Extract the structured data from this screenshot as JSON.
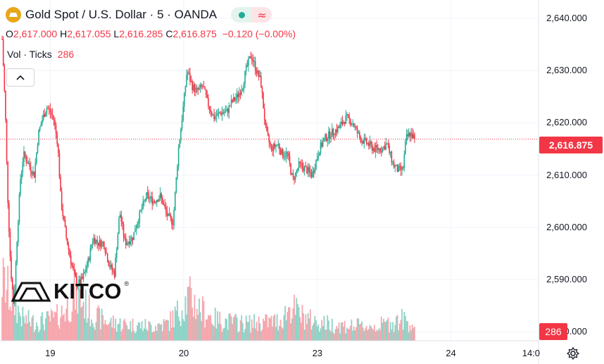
{
  "header": {
    "title": "Gold Spot / U.S. Dollar · 5 · OANDA",
    "compare_symbol": "≈"
  },
  "ohlc": {
    "o_label": "O",
    "o_value": "2,617.000",
    "h_label": "H",
    "h_value": "2,617.055",
    "l_label": "L",
    "l_value": "2,616.285",
    "c_label": "C",
    "c_value": "2,616.875",
    "change": "−0.120 (−0.00%)"
  },
  "volume_indicator": {
    "label": "Vol · Ticks",
    "value": "286"
  },
  "logo": {
    "text": "KITCO",
    "reg": "®"
  },
  "colors": {
    "up": "#22ab94",
    "down": "#f23645",
    "vol_up": "#8fd3c7",
    "vol_down": "#f6a7ad"
  },
  "chart_data": {
    "type": "candlestick",
    "symbol": "Gold Spot / U.S. Dollar",
    "interval": "5",
    "source": "OANDA",
    "y_ticks": [
      "2,640.000",
      "2,630.000",
      "2,620.000",
      "2,610.000",
      "2,600.000",
      "2,590.000",
      "2,580.000"
    ],
    "y_tick_values": [
      2640,
      2630,
      2620,
      2610,
      2600,
      2590,
      2580
    ],
    "ylim": [
      2578.3,
      2643.5
    ],
    "x_ticks": [
      "19",
      "20",
      "23",
      "24",
      "14:0"
    ],
    "x_tick_positions": [
      0.75,
      2.0,
      3.25,
      4.5,
      5.25
    ],
    "x_range": [
      0.28,
      5.32
    ],
    "last_price": "2,616.875",
    "last_price_value": 2616.875,
    "last_volume": "286",
    "price_path": [
      [
        0.3,
        2636
      ],
      [
        0.33,
        2622
      ],
      [
        0.35,
        2607
      ],
      [
        0.38,
        2592
      ],
      [
        0.41,
        2585
      ],
      [
        0.44,
        2598
      ],
      [
        0.47,
        2609
      ],
      [
        0.5,
        2614
      ],
      [
        0.55,
        2612
      ],
      [
        0.6,
        2610
      ],
      [
        0.64,
        2618
      ],
      [
        0.68,
        2621
      ],
      [
        0.72,
        2623
      ],
      [
        0.78,
        2621
      ],
      [
        0.82,
        2616
      ],
      [
        0.85,
        2605
      ],
      [
        0.9,
        2598
      ],
      [
        0.96,
        2592
      ],
      [
        1.0,
        2589
      ],
      [
        1.05,
        2590
      ],
      [
        1.1,
        2593
      ],
      [
        1.15,
        2598
      ],
      [
        1.2,
        2597
      ],
      [
        1.25,
        2597
      ],
      [
        1.3,
        2593
      ],
      [
        1.35,
        2591
      ],
      [
        1.4,
        2603
      ],
      [
        1.45,
        2597
      ],
      [
        1.52,
        2598
      ],
      [
        1.58,
        2602
      ],
      [
        1.65,
        2606
      ],
      [
        1.72,
        2605
      ],
      [
        1.78,
        2606
      ],
      [
        1.85,
        2602
      ],
      [
        1.9,
        2601
      ],
      [
        1.95,
        2615
      ],
      [
        1.99,
        2622
      ],
      [
        2.03,
        2630
      ],
      [
        2.08,
        2627
      ],
      [
        2.12,
        2626
      ],
      [
        2.18,
        2627
      ],
      [
        2.22,
        2624
      ],
      [
        2.28,
        2621
      ],
      [
        2.35,
        2622
      ],
      [
        2.4,
        2622
      ],
      [
        2.45,
        2624
      ],
      [
        2.5,
        2625
      ],
      [
        2.55,
        2627
      ],
      [
        2.58,
        2630
      ],
      [
        2.63,
        2633
      ],
      [
        2.68,
        2630
      ],
      [
        2.72,
        2628
      ],
      [
        2.77,
        2618
      ],
      [
        2.82,
        2615
      ],
      [
        2.88,
        2616
      ],
      [
        2.92,
        2614
      ],
      [
        2.97,
        2614
      ],
      [
        3.02,
        2609
      ],
      [
        3.08,
        2612
      ],
      [
        3.15,
        2611
      ],
      [
        3.2,
        2610
      ],
      [
        3.27,
        2615
      ],
      [
        3.32,
        2617
      ],
      [
        3.38,
        2618
      ],
      [
        3.45,
        2619
      ],
      [
        3.52,
        2621
      ],
      [
        3.58,
        2620
      ],
      [
        3.65,
        2617
      ],
      [
        3.72,
        2616
      ],
      [
        3.78,
        2615
      ],
      [
        3.85,
        2615
      ],
      [
        3.9,
        2616
      ],
      [
        3.96,
        2612
      ],
      [
        4.0,
        2611
      ],
      [
        4.05,
        2611
      ],
      [
        4.08,
        2617
      ],
      [
        4.12,
        2618
      ],
      [
        4.16,
        2617
      ]
    ],
    "volume_profile": [
      [
        0.3,
        230
      ],
      [
        0.4,
        150
      ],
      [
        0.5,
        80
      ],
      [
        0.6,
        70
      ],
      [
        0.7,
        75
      ],
      [
        0.8,
        85
      ],
      [
        0.9,
        120
      ],
      [
        0.98,
        175
      ],
      [
        1.05,
        150
      ],
      [
        1.15,
        95
      ],
      [
        1.3,
        70
      ],
      [
        1.5,
        60
      ],
      [
        1.7,
        55
      ],
      [
        1.85,
        65
      ],
      [
        1.95,
        110
      ],
      [
        2.05,
        165
      ],
      [
        2.15,
        120
      ],
      [
        2.3,
        80
      ],
      [
        2.45,
        70
      ],
      [
        2.6,
        65
      ],
      [
        2.75,
        70
      ],
      [
        2.9,
        75
      ],
      [
        3.0,
        130
      ],
      [
        3.1,
        95
      ],
      [
        3.2,
        75
      ],
      [
        3.4,
        60
      ],
      [
        3.6,
        55
      ],
      [
        3.8,
        55
      ],
      [
        3.95,
        70
      ],
      [
        4.05,
        80
      ],
      [
        4.16,
        60
      ]
    ],
    "volume_scale_max": 320
  }
}
